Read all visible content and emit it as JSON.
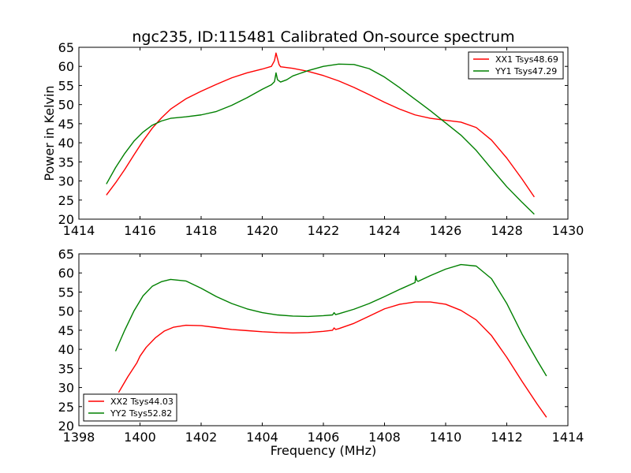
{
  "figure": {
    "title": "ngc235, ID:115481 Calibrated On-source spectrum",
    "ylabel": "Power in Kelvin",
    "xlabel": "Frequency (MHz)"
  },
  "chart_data": [
    {
      "type": "line",
      "title": "ngc235, ID:115481 Calibrated On-source spectrum",
      "xlabel": "",
      "ylabel": "Power in Kelvin",
      "xlim": [
        1414,
        1430
      ],
      "ylim": [
        20,
        65
      ],
      "xticks": [
        1414,
        1416,
        1418,
        1420,
        1422,
        1424,
        1426,
        1428,
        1430
      ],
      "yticks": [
        20,
        25,
        30,
        35,
        40,
        45,
        50,
        55,
        60,
        65
      ],
      "grid": false,
      "legend_position": "top-right",
      "series": [
        {
          "name": "XX1 Tsys48.69",
          "color": "#ff0000",
          "x": [
            1414.9,
            1415.2,
            1415.5,
            1415.8,
            1416.1,
            1416.4,
            1416.7,
            1417.0,
            1417.5,
            1418.0,
            1418.5,
            1419.0,
            1419.5,
            1420.0,
            1420.3,
            1420.4,
            1420.45,
            1420.5,
            1420.55,
            1420.6,
            1420.8,
            1421.0,
            1421.5,
            1422.0,
            1422.5,
            1423.0,
            1423.5,
            1424.0,
            1424.5,
            1425.0,
            1425.5,
            1426.0,
            1426.5,
            1427.0,
            1427.5,
            1428.0,
            1428.5,
            1428.9
          ],
          "y": [
            26.3,
            29.5,
            33.0,
            36.8,
            40.5,
            43.8,
            46.5,
            48.8,
            51.5,
            53.5,
            55.3,
            57.0,
            58.3,
            59.3,
            60.0,
            61.5,
            63.5,
            62.0,
            60.5,
            59.9,
            59.7,
            59.5,
            58.7,
            57.6,
            56.2,
            54.5,
            52.6,
            50.6,
            48.8,
            47.3,
            46.4,
            45.9,
            45.4,
            44.0,
            40.7,
            36.0,
            30.5,
            25.8
          ]
        },
        {
          "name": "YY1 Tsys47.29",
          "color": "#008000",
          "x": [
            1414.9,
            1415.2,
            1415.5,
            1415.8,
            1416.1,
            1416.4,
            1416.7,
            1417.0,
            1417.5,
            1418.0,
            1418.5,
            1419.0,
            1419.5,
            1420.0,
            1420.3,
            1420.4,
            1420.45,
            1420.5,
            1420.6,
            1420.8,
            1421.0,
            1421.5,
            1422.0,
            1422.5,
            1423.0,
            1423.5,
            1424.0,
            1424.5,
            1425.0,
            1425.5,
            1426.0,
            1426.5,
            1427.0,
            1427.5,
            1428.0,
            1428.5,
            1428.9
          ],
          "y": [
            29.2,
            33.5,
            37.2,
            40.4,
            42.8,
            44.6,
            45.7,
            46.4,
            46.8,
            47.3,
            48.2,
            49.8,
            51.8,
            54.0,
            55.2,
            56.0,
            58.3,
            56.5,
            55.9,
            56.5,
            57.5,
            58.9,
            60.0,
            60.6,
            60.5,
            59.4,
            57.2,
            54.4,
            51.4,
            48.4,
            45.2,
            42.0,
            38.0,
            33.2,
            28.5,
            24.4,
            21.3
          ]
        }
      ]
    },
    {
      "type": "line",
      "title": "",
      "xlabel": "Frequency (MHz)",
      "ylabel": "",
      "xlim": [
        1398,
        1414
      ],
      "ylim": [
        20,
        65
      ],
      "xticks": [
        1398,
        1400,
        1402,
        1404,
        1406,
        1408,
        1410,
        1412,
        1414
      ],
      "yticks": [
        20,
        25,
        30,
        35,
        40,
        45,
        50,
        55,
        60,
        65
      ],
      "grid": false,
      "legend_position": "bottom-left",
      "series": [
        {
          "name": "XX2 Tsys44.03",
          "color": "#ff0000",
          "x": [
            1399.3,
            1399.6,
            1399.9,
            1400.0,
            1400.2,
            1400.5,
            1400.8,
            1401.1,
            1401.5,
            1402.0,
            1402.5,
            1403.0,
            1403.5,
            1404.0,
            1404.5,
            1405.0,
            1405.5,
            1406.0,
            1406.3,
            1406.35,
            1406.4,
            1406.5,
            1407.0,
            1407.5,
            1408.0,
            1408.5,
            1409.0,
            1409.5,
            1410.0,
            1410.5,
            1411.0,
            1411.5,
            1412.0,
            1412.5,
            1413.0,
            1413.3
          ],
          "y": [
            28.7,
            32.8,
            36.5,
            38.2,
            40.5,
            43.0,
            44.8,
            45.8,
            46.3,
            46.2,
            45.7,
            45.2,
            44.9,
            44.6,
            44.4,
            44.3,
            44.4,
            44.7,
            45.0,
            45.6,
            45.2,
            45.4,
            46.8,
            48.7,
            50.6,
            51.8,
            52.4,
            52.4,
            51.8,
            50.2,
            47.7,
            43.6,
            37.9,
            31.6,
            25.6,
            22.2
          ]
        },
        {
          "name": "YY2 Tsys52.82",
          "color": "#008000",
          "x": [
            1399.2,
            1399.5,
            1399.8,
            1400.1,
            1400.4,
            1400.7,
            1401.0,
            1401.5,
            1402.0,
            1402.5,
            1403.0,
            1403.5,
            1404.0,
            1404.5,
            1405.0,
            1405.5,
            1406.0,
            1406.3,
            1406.35,
            1406.4,
            1406.5,
            1407.0,
            1407.5,
            1408.0,
            1408.5,
            1409.0,
            1409.02,
            1409.06,
            1409.1,
            1409.5,
            1410.0,
            1410.5,
            1411.0,
            1411.5,
            1412.0,
            1412.5,
            1413.0,
            1413.3
          ],
          "y": [
            39.5,
            45.0,
            50.0,
            54.0,
            56.5,
            57.7,
            58.3,
            57.9,
            56.0,
            53.8,
            52.0,
            50.6,
            49.6,
            49.0,
            48.7,
            48.6,
            48.8,
            49.0,
            49.6,
            49.1,
            49.3,
            50.5,
            52.0,
            53.8,
            55.7,
            57.5,
            59.2,
            58.0,
            57.8,
            59.3,
            61.0,
            62.2,
            61.8,
            58.5,
            52.0,
            44.0,
            37.0,
            33.0
          ]
        }
      ]
    }
  ]
}
